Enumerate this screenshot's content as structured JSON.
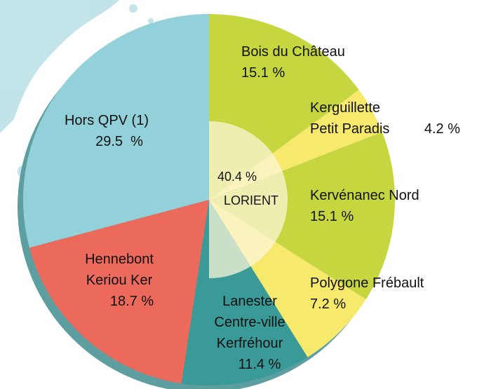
{
  "chart_data": {
    "type": "pie",
    "categories": [
      [
        "Bois du Château"
      ],
      [
        "Kerguillette",
        "Petit Paradis"
      ],
      [
        "Kervénanec Nord"
      ],
      [
        "Polygone Frébault"
      ],
      [
        "Lanester",
        "Centre-ville",
        "Kerfréhour"
      ],
      [
        "Hennebont",
        "Keriou Ker"
      ],
      [
        "Hors QPV (1)"
      ]
    ],
    "values": [
      15.1,
      4.2,
      15.1,
      7.2,
      11.4,
      18.7,
      29.5
    ],
    "value_labels": [
      "15.1 %",
      "4.2 %",
      "15.1 %",
      "7.2 %",
      "11.4 %",
      "18.7 %",
      "29.5  %"
    ],
    "colors": [
      "#c6d63e",
      "#f6e96c",
      "#c6d63e",
      "#f6e96c",
      "#3a9a98",
      "#ec6a5b",
      "#92d1d9"
    ],
    "annotation": {
      "value_label": "40.4 %",
      "label": "LORIENT"
    }
  }
}
